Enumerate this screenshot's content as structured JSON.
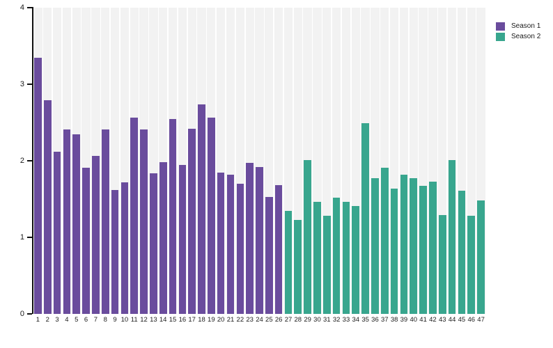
{
  "chart_data": {
    "type": "bar",
    "title": "",
    "xlabel": "",
    "ylabel": "",
    "ylim": [
      0,
      4
    ],
    "yticks": [
      0,
      1,
      2,
      3,
      4
    ],
    "categories": [
      1,
      2,
      3,
      4,
      5,
      6,
      7,
      8,
      9,
      10,
      11,
      12,
      13,
      14,
      15,
      16,
      17,
      18,
      19,
      20,
      21,
      22,
      23,
      24,
      25,
      26,
      27,
      28,
      29,
      30,
      31,
      32,
      33,
      34,
      35,
      36,
      37,
      38,
      39,
      40,
      41,
      42,
      43,
      44,
      45,
      46,
      47
    ],
    "legend_position": "top-right",
    "grid": "vertical-striped-background",
    "stripe_color": "#f2f2f2",
    "axis_color": "#111111",
    "series": [
      {
        "name": "Season 1",
        "color": "#6a4c9d",
        "x": [
          1,
          2,
          3,
          4,
          5,
          6,
          7,
          8,
          9,
          10,
          11,
          12,
          13,
          14,
          15,
          16,
          17,
          18,
          19,
          20,
          21,
          22,
          23,
          24,
          25,
          26
        ],
        "values": [
          3.35,
          2.79,
          2.12,
          2.41,
          2.35,
          1.91,
          2.06,
          2.41,
          1.62,
          1.72,
          2.56,
          2.41,
          1.84,
          1.98,
          2.55,
          1.95,
          2.42,
          2.74,
          2.56,
          1.85,
          1.82,
          1.7,
          1.97,
          1.92,
          1.53,
          1.68
        ]
      },
      {
        "name": "Season 2",
        "color": "#38a68e",
        "x": [
          27,
          28,
          29,
          30,
          31,
          32,
          33,
          34,
          35,
          36,
          37,
          38,
          39,
          40,
          41,
          42,
          43,
          44,
          45,
          46,
          47
        ],
        "values": [
          1.35,
          1.23,
          2.01,
          1.46,
          1.28,
          1.52,
          1.46,
          1.41,
          2.49,
          1.77,
          1.91,
          1.64,
          1.82,
          1.77,
          1.67,
          1.73,
          1.29,
          2.01,
          1.61,
          1.28,
          1.48
        ]
      }
    ]
  },
  "legend": {
    "items": [
      {
        "label": "Season 1",
        "color": "#6a4c9d"
      },
      {
        "label": "Season 2",
        "color": "#38a68e"
      }
    ]
  }
}
